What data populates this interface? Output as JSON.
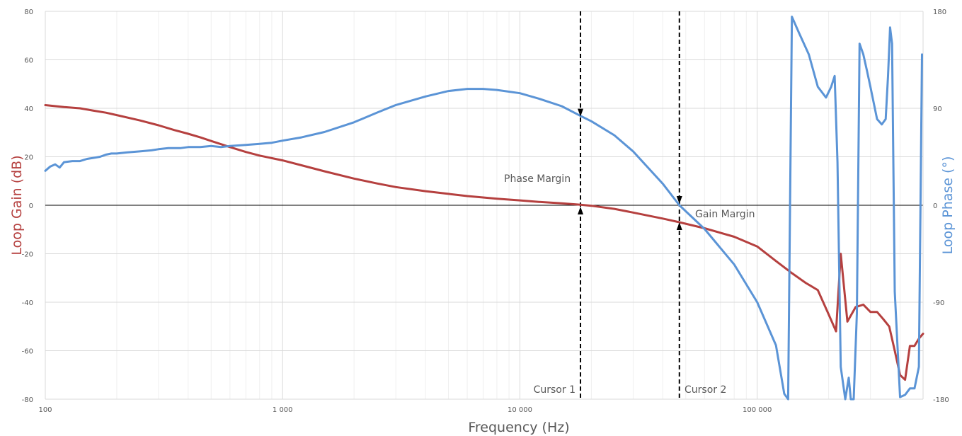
{
  "chart_data": {
    "type": "line",
    "xlabel": "Frequency (Hz)",
    "ylabel_left": "Loop Gain (dB)",
    "ylabel_right": "Loop Phase (°)",
    "x_scale": "log",
    "xlim": [
      100,
      500000
    ],
    "ylim_left": [
      -80,
      80
    ],
    "ylim_right": [
      -180,
      180
    ],
    "x_ticks": [
      100,
      1000,
      10000,
      100000
    ],
    "x_tick_labels": [
      "100",
      "1 000",
      "10 000",
      "100 000"
    ],
    "y_left_ticks": [
      80,
      60,
      40,
      20,
      0,
      -20,
      -40,
      -60,
      -80
    ],
    "y_left_tick_labels": [
      "80",
      "60",
      "40",
      "20",
      "0",
      "-20",
      "-40",
      "-60",
      "-80"
    ],
    "y_right_ticks": [
      180,
      90,
      0,
      -90,
      -180
    ],
    "y_right_tick_labels": [
      "180",
      "90",
      "0",
      "-90",
      "-180"
    ],
    "grid": true,
    "colors": {
      "gain": "#b5403f",
      "phase": "#5b94d6"
    },
    "series": [
      {
        "key": "gain",
        "axis": "left",
        "x": [
          100,
          120,
          140,
          160,
          180,
          200,
          250,
          300,
          350,
          400,
          450,
          500,
          600,
          700,
          800,
          1000,
          1200,
          1500,
          2000,
          2500,
          3000,
          4000,
          5000,
          6000,
          7000,
          8000,
          10000,
          12000,
          15000,
          18000,
          20000,
          25000,
          30000,
          40000,
          47000,
          60000,
          80000,
          100000,
          120000,
          140000,
          160000,
          180000,
          200000,
          215000,
          225000,
          240000,
          260000,
          280000,
          300000,
          320000,
          340000,
          360000,
          380000,
          400000,
          420000,
          440000,
          460000,
          480000,
          500000
        ],
        "y": [
          41.3,
          40.5,
          40.0,
          39.0,
          38.2,
          37.2,
          35.0,
          33.0,
          31.0,
          29.5,
          28.0,
          26.5,
          24.0,
          22.0,
          20.5,
          18.5,
          16.5,
          14.0,
          11.0,
          9.0,
          7.5,
          5.8,
          4.7,
          3.8,
          3.2,
          2.7,
          2.0,
          1.4,
          0.8,
          0.2,
          -0.2,
          -1.5,
          -3.0,
          -5.5,
          -7.0,
          -9.5,
          -13.0,
          -17.0,
          -23.0,
          -28.0,
          -32.0,
          -35.0,
          -45.0,
          -52.0,
          -20.0,
          -48.0,
          -42.0,
          -41.0,
          -44.0,
          -44.0,
          -47.0,
          -50.0,
          -60.0,
          -70.0,
          -72.0,
          -58.0,
          -58.0,
          -55.0,
          -53.0
        ]
      },
      {
        "key": "phase",
        "axis": "right",
        "x": [
          100,
          105,
          110,
          115,
          120,
          130,
          140,
          150,
          160,
          170,
          180,
          190,
          200,
          220,
          250,
          280,
          300,
          330,
          370,
          400,
          450,
          500,
          550,
          600,
          700,
          800,
          900,
          1000,
          1200,
          1500,
          2000,
          2500,
          3000,
          4000,
          5000,
          6000,
          7000,
          8000,
          10000,
          12000,
          15000,
          18000,
          20000,
          25000,
          30000,
          40000,
          47000,
          60000,
          80000,
          100000,
          120000,
          130000,
          135000,
          140000,
          150000,
          165000,
          180000,
          195000,
          205000,
          212000,
          218000,
          225000,
          235000,
          243000,
          248000,
          255000,
          263000,
          270000,
          280000,
          290000,
          300000,
          320000,
          335000,
          348000,
          356000,
          363000,
          370000,
          380000,
          400000,
          420000,
          440000,
          460000,
          480000,
          495000
        ],
        "y": [
          32,
          36,
          38,
          35,
          40,
          41,
          41,
          43,
          44,
          45,
          47,
          48,
          48,
          49,
          50,
          51,
          52,
          53,
          53,
          54,
          54,
          55,
          54,
          55,
          56,
          57,
          58,
          60,
          63,
          68,
          77,
          86,
          93,
          101,
          106,
          108,
          108,
          107,
          104,
          99,
          92,
          83,
          78,
          65,
          50,
          20,
          0,
          -22,
          -55,
          -90,
          -130,
          -175,
          -180,
          175,
          160,
          140,
          110,
          100,
          110,
          120,
          40,
          -150,
          -180,
          -160,
          -180,
          -180,
          -100,
          150,
          140,
          125,
          110,
          80,
          75,
          80,
          120,
          165,
          150,
          -80,
          -178,
          -176,
          -170,
          -170,
          -150,
          140
        ]
      }
    ],
    "annotations": {
      "phase_margin": "Phase Margin",
      "gain_margin": "Gain Margin",
      "cursor1": "Cursor 1",
      "cursor2": "Cursor 2"
    },
    "cursors": [
      {
        "label_key": "cursor1",
        "x": 18000,
        "arrow_from_phase": 85,
        "arrow_to_gain": 0
      },
      {
        "label_key": "cursor2",
        "x": 47000,
        "arrow_from_phase": 0,
        "arrow_to_gain": -7
      }
    ]
  }
}
